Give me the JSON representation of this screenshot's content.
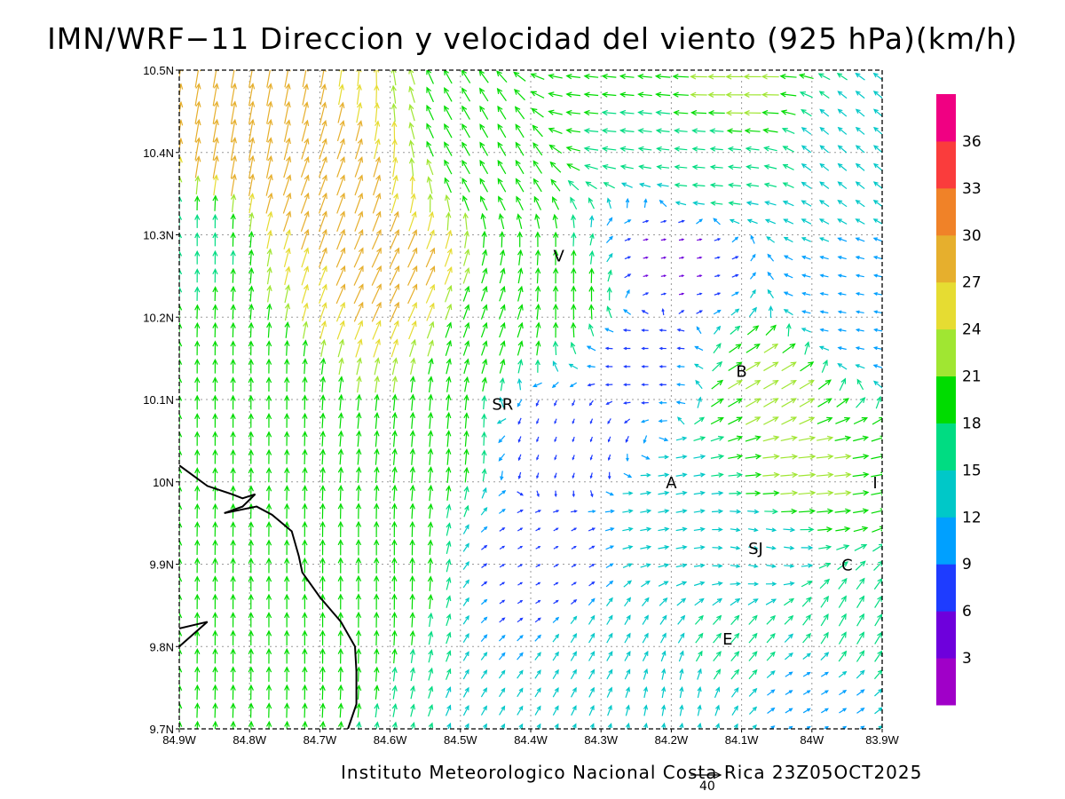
{
  "title": "IMN/WRF−11 Direccion y velocidad del viento (925 hPa)(km/h)",
  "footer": "Instituto Meteorologico Nacional Costa Rica 23Z05OCT2025",
  "reference_vector": {
    "label": "40",
    "speed_kmh": 40
  },
  "map": {
    "lon_range": [
      -84.9,
      -83.9
    ],
    "lat_range": [
      9.7,
      10.5
    ],
    "grid": true,
    "x_ticks": [
      {
        "value": -84.9,
        "label": "84.9W"
      },
      {
        "value": -84.8,
        "label": "84.8W"
      },
      {
        "value": -84.7,
        "label": "84.7W"
      },
      {
        "value": -84.6,
        "label": "84.6W"
      },
      {
        "value": -84.5,
        "label": "84.5W"
      },
      {
        "value": -84.4,
        "label": "84.4W"
      },
      {
        "value": -84.3,
        "label": "84.3W"
      },
      {
        "value": -84.2,
        "label": "84.2W"
      },
      {
        "value": -84.1,
        "label": "84.1W"
      },
      {
        "value": -84.0,
        "label": "84W"
      },
      {
        "value": -83.9,
        "label": "83.9W"
      }
    ],
    "y_ticks": [
      {
        "value": 10.5,
        "label": "10.5N"
      },
      {
        "value": 10.4,
        "label": "10.4N"
      },
      {
        "value": 10.3,
        "label": "10.3N"
      },
      {
        "value": 10.2,
        "label": "10.2N"
      },
      {
        "value": 10.1,
        "label": "10.1N"
      },
      {
        "value": 10.0,
        "label": "10N"
      },
      {
        "value": 9.9,
        "label": "9.9N"
      },
      {
        "value": 9.8,
        "label": "9.8N"
      },
      {
        "value": 9.7,
        "label": "9.7N"
      }
    ],
    "cities": [
      {
        "label": "V",
        "lon": -84.36,
        "lat": 10.275
      },
      {
        "label": "B",
        "lon": -84.1,
        "lat": 10.135
      },
      {
        "label": "SR",
        "lon": -84.44,
        "lat": 10.095
      },
      {
        "label": "A",
        "lon": -84.2,
        "lat": 10.0
      },
      {
        "label": "I",
        "lon": -83.91,
        "lat": 10.0
      },
      {
        "label": "SJ",
        "lon": -84.08,
        "lat": 9.92
      },
      {
        "label": "C",
        "lon": -83.95,
        "lat": 9.9
      },
      {
        "label": "E",
        "lon": -84.12,
        "lat": 9.81
      }
    ],
    "coastline": [
      [
        -84.9,
        10.02
      ],
      [
        -84.86,
        9.995
      ],
      [
        -84.825,
        9.985
      ],
      [
        -84.81,
        9.98
      ],
      [
        -84.792,
        9.985
      ],
      [
        -84.81,
        9.97
      ],
      [
        -84.836,
        9.962
      ],
      [
        -84.79,
        9.97
      ],
      [
        -84.768,
        9.96
      ],
      [
        -84.74,
        9.94
      ],
      [
        -84.73,
        9.91
      ],
      [
        -84.725,
        9.89
      ],
      [
        -84.7,
        9.86
      ],
      [
        -84.67,
        9.83
      ],
      [
        -84.65,
        9.8
      ],
      [
        -84.648,
        9.77
      ],
      [
        -84.648,
        9.73
      ],
      [
        -84.66,
        9.7
      ]
    ],
    "coastline_south": [
      [
        -84.9,
        9.822
      ],
      [
        -84.86,
        9.83
      ],
      [
        -84.9,
        9.8
      ]
    ]
  },
  "colorbar": {
    "labels": [
      "3",
      "6",
      "9",
      "12",
      "15",
      "18",
      "21",
      "24",
      "27",
      "30",
      "33",
      "36"
    ],
    "colors": [
      "#a000c8",
      "#6e00dc",
      "#1e3cff",
      "#00a0ff",
      "#00c8c8",
      "#00dc82",
      "#00dc00",
      "#a0e632",
      "#e6dc32",
      "#e6af2d",
      "#f08228",
      "#fa3c3c",
      "#f00082"
    ]
  },
  "wind_regions": [
    {
      "lon": -84.88,
      "lat": 10.3,
      "dir": 0,
      "speed": 17
    },
    {
      "lon": -84.82,
      "lat": 10.1,
      "dir": 0,
      "speed": 18
    },
    {
      "lon": -84.75,
      "lat": 9.85,
      "dir": 0,
      "speed": 19
    },
    {
      "lon": -84.62,
      "lat": 9.9,
      "dir": 0,
      "speed": 20
    },
    {
      "lon": -84.55,
      "lat": 10.05,
      "dir": 5,
      "speed": 21
    },
    {
      "lon": -84.82,
      "lat": 10.4,
      "dir": 10,
      "speed": 30
    },
    {
      "lon": -84.7,
      "lat": 10.35,
      "dir": 20,
      "speed": 28
    },
    {
      "lon": -84.6,
      "lat": 10.25,
      "dir": 25,
      "speed": 28
    },
    {
      "lon": -84.45,
      "lat": 10.2,
      "dir": 20,
      "speed": 20
    },
    {
      "lon": -84.45,
      "lat": 10.4,
      "dir": 330,
      "speed": 20
    },
    {
      "lon": -84.35,
      "lat": 10.22,
      "dir": 0,
      "speed": 20
    },
    {
      "lon": -84.3,
      "lat": 10.45,
      "dir": 275,
      "speed": 18
    },
    {
      "lon": -84.1,
      "lat": 10.48,
      "dir": 270,
      "speed": 22
    },
    {
      "lon": -84.15,
      "lat": 10.38,
      "dir": 275,
      "speed": 16
    },
    {
      "lon": -83.95,
      "lat": 10.42,
      "dir": 310,
      "speed": 14
    },
    {
      "lon": -84.2,
      "lat": 10.27,
      "dir": 80,
      "speed": 5
    },
    {
      "lon": -84.25,
      "lat": 10.15,
      "dir": 270,
      "speed": 8
    },
    {
      "lon": -83.95,
      "lat": 10.2,
      "dir": 280,
      "speed": 10
    },
    {
      "lon": -84.05,
      "lat": 10.12,
      "dir": 60,
      "speed": 22
    },
    {
      "lon": -84.35,
      "lat": 10.05,
      "dir": 200,
      "speed": 6
    },
    {
      "lon": -84.02,
      "lat": 10.0,
      "dir": 85,
      "speed": 22
    },
    {
      "lon": -84.2,
      "lat": 9.95,
      "dir": 80,
      "speed": 14
    },
    {
      "lon": -84.08,
      "lat": 9.92,
      "dir": 100,
      "speed": 12
    },
    {
      "lon": -84.38,
      "lat": 9.9,
      "dir": 60,
      "speed": 6
    },
    {
      "lon": -84.28,
      "lat": 9.8,
      "dir": 30,
      "speed": 14
    },
    {
      "lon": -84.1,
      "lat": 9.8,
      "dir": 40,
      "speed": 16
    },
    {
      "lon": -83.95,
      "lat": 9.82,
      "dir": 30,
      "speed": 18
    },
    {
      "lon": -84.2,
      "lat": 9.74,
      "dir": 10,
      "speed": 14
    },
    {
      "lon": -84.0,
      "lat": 9.75,
      "dir": 60,
      "speed": 10
    }
  ]
}
